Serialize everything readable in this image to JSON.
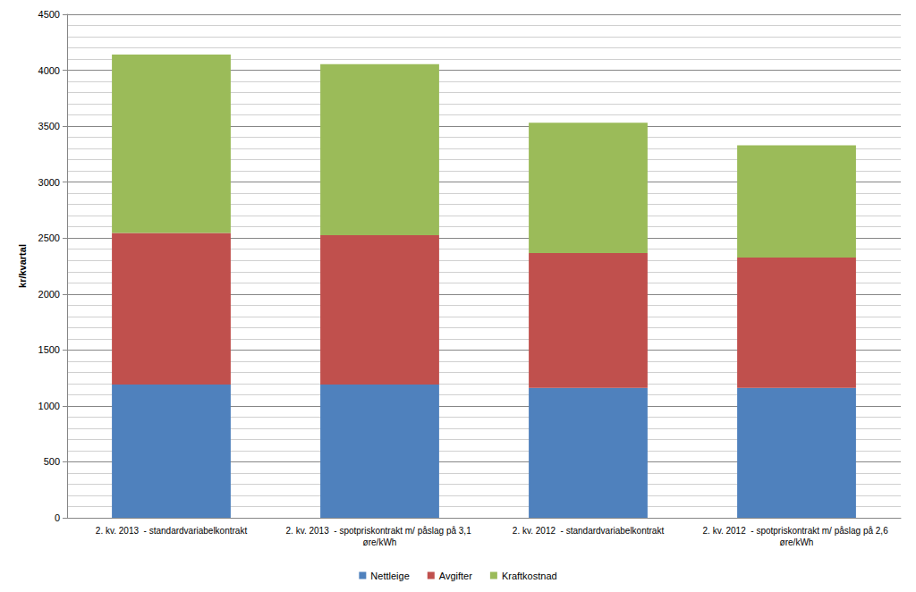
{
  "chart_data": {
    "type": "bar",
    "stacked": true,
    "y_label": "kr/kvartal",
    "categories": [
      "2. kv. 2013  - standardvariabelkontrakt",
      "2. kv. 2013  - spotpriskontrakt m/ påslag på 3,1 øre/kWh",
      "2. kv. 2012  - standardvariabelkontrakt",
      "2. kv. 2012  - spotpriskontrakt m/ påslag på 2,6 øre/kWh"
    ],
    "series": [
      {
        "name": "Nettleige",
        "color": "#4f81bd",
        "values": [
          1190,
          1190,
          1160,
          1160
        ]
      },
      {
        "name": "Avgifter",
        "color": "#c0504d",
        "values": [
          1355,
          1335,
          1205,
          1165
        ]
      },
      {
        "name": "Kraftkostnad",
        "color": "#9bbb59",
        "values": [
          1595,
          1530,
          1165,
          1005
        ]
      }
    ],
    "ylim": [
      0,
      4500
    ],
    "yticks": [
      0,
      500,
      1000,
      1500,
      2000,
      2500,
      3000,
      3500,
      4000,
      4500
    ],
    "grid": true,
    "legend": "bottom"
  }
}
